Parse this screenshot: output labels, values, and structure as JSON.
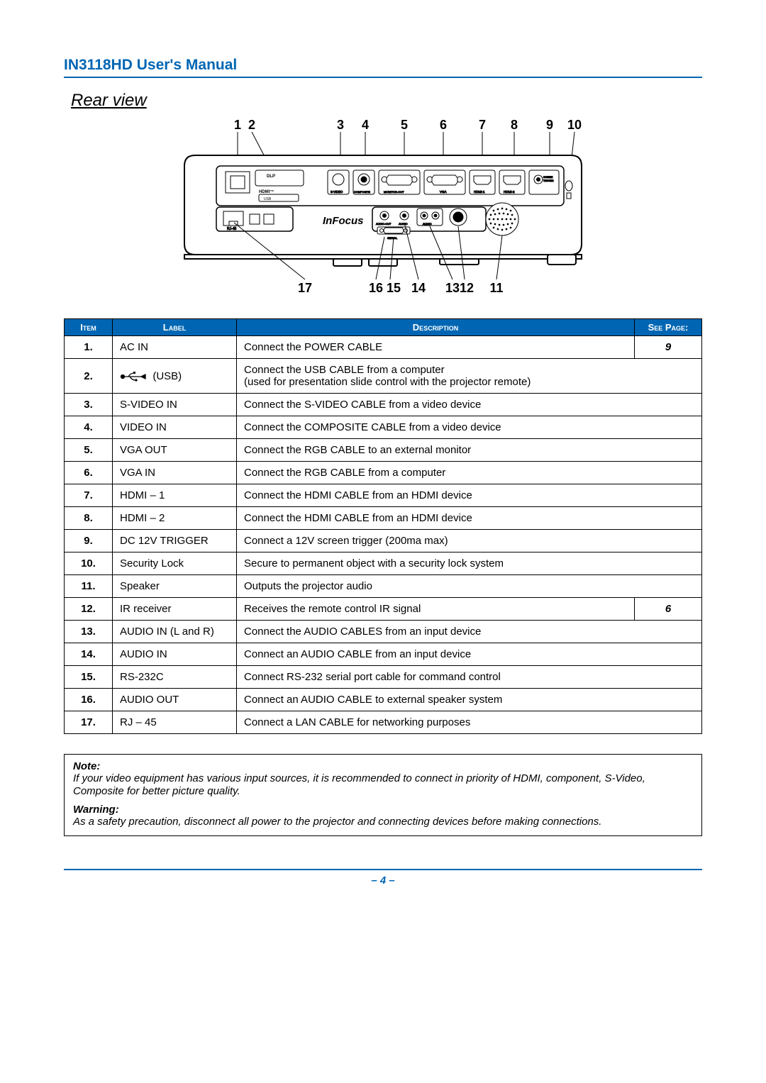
{
  "header": {
    "title": "IN3118HD User's Manual"
  },
  "section": {
    "title": "Rear view"
  },
  "diagram": {
    "top_labels": [
      "1",
      "2",
      "3",
      "4",
      "5",
      "6",
      "7",
      "8",
      "9",
      "10"
    ],
    "bottom_labels": [
      "17",
      "16",
      "15",
      "14",
      "13",
      "12",
      "11"
    ],
    "brand": "InFocus",
    "logos": [
      "DLP",
      "HDMI"
    ],
    "port_captions": [
      "USB",
      "S-VIDEO",
      "COMPOSITE",
      "MONITOR-OUT",
      "VGA",
      "HDMI-1",
      "HDMI-2",
      "SCREEN TRIGGER",
      "AUDIO-OUT",
      "AUDIO",
      "AUDIO",
      "RJ-45",
      "SERIAL"
    ]
  },
  "columns": {
    "item": "Item",
    "label": "Label",
    "description": "Description",
    "seepage": "See Page:"
  },
  "rows": [
    {
      "item": "1.",
      "label": "AC IN",
      "desc": "Connect the POWER CABLE",
      "page": "9"
    },
    {
      "item": "2.",
      "label": "(USB)",
      "usb_icon": true,
      "desc": "Connect the USB CABLE from a computer\n(used for presentation slide control with the projector remote)"
    },
    {
      "item": "3.",
      "label": "S-VIDEO IN",
      "desc": "Connect the S-VIDEO CABLE from a video device"
    },
    {
      "item": "4.",
      "label": "VIDEO IN",
      "desc": "Connect the COMPOSITE CABLE from a video device"
    },
    {
      "item": "5.",
      "label": "VGA OUT",
      "desc": "Connect the RGB CABLE to an external monitor"
    },
    {
      "item": "6.",
      "label": "VGA IN",
      "desc": "Connect the RGB CABLE from a computer"
    },
    {
      "item": "7.",
      "label": "HDMI – 1",
      "desc": "Connect the HDMI CABLE from an HDMI device"
    },
    {
      "item": "8.",
      "label": "HDMI – 2",
      "desc": "Connect the HDMI CABLE from an HDMI device"
    },
    {
      "item": "9.",
      "label": "DC 12V TRIGGER",
      "desc": "Connect a 12V screen trigger (200ma max)"
    },
    {
      "item": "10.",
      "label": "Security Lock",
      "desc": "Secure to permanent object with a security lock system"
    },
    {
      "item": "11.",
      "label": "Speaker",
      "desc": "Outputs the projector audio"
    },
    {
      "item": "12.",
      "label": "IR receiver",
      "desc": "Receives the remote control IR signal",
      "page": "6"
    },
    {
      "item": "13.",
      "label": "AUDIO IN (L and R)",
      "desc": "Connect the AUDIO CABLES from an input device"
    },
    {
      "item": "14.",
      "label": "AUDIO IN",
      "desc": "Connect an AUDIO CABLE from an input device"
    },
    {
      "item": "15.",
      "label": "RS-232C",
      "desc": "Connect RS-232 serial port cable for command control"
    },
    {
      "item": "16.",
      "label": "AUDIO OUT",
      "desc": "Connect an AUDIO CABLE to external speaker system"
    },
    {
      "item": "17.",
      "label": "RJ – 45",
      "desc": "Connect a LAN CABLE for networking purposes"
    }
  ],
  "notes": {
    "note_title": "Note:",
    "note_body": "If your video equipment has various input sources, it is recommended to connect in priority of HDMI, component, S-Video, Composite for better picture quality.",
    "warn_title": "Warning:",
    "warn_body": "As a safety precaution, disconnect all power to the projector and connecting devices before making connections."
  },
  "footer": {
    "page": "– 4 –"
  },
  "colors": {
    "accent": "#0066b3",
    "table_border": "#000000",
    "white": "#ffffff"
  }
}
